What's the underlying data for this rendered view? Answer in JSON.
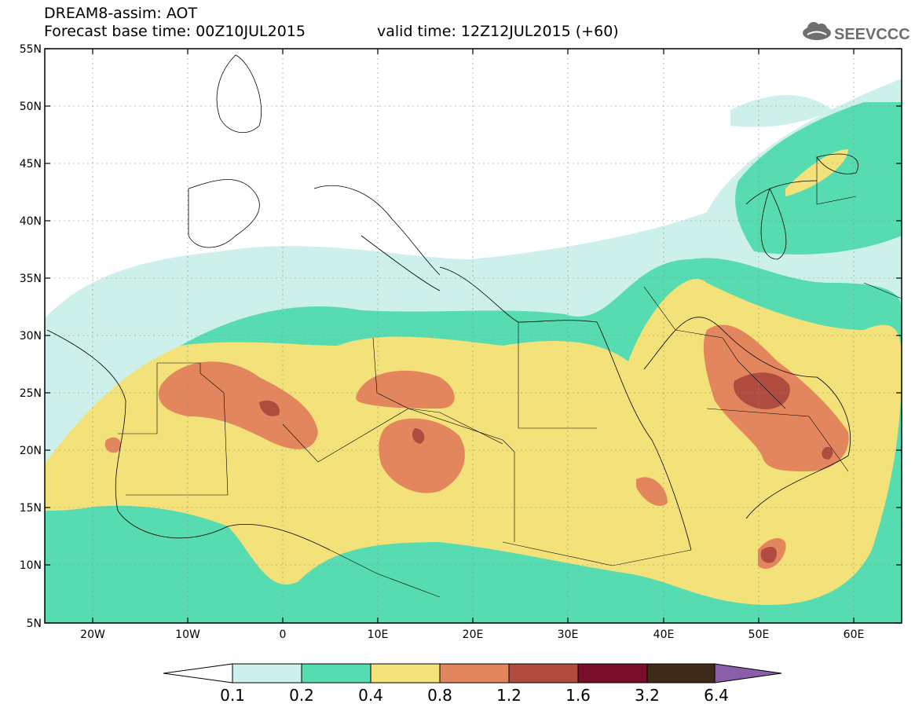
{
  "header": {
    "title": "DREAM8-assim: AOT",
    "base_time": "Forecast base time: 00Z10JUL2015",
    "valid_time": "valid time: 12Z12JUL2015 (+60)",
    "logo_text": "SEEVCCC"
  },
  "map": {
    "lat_labels": [
      "55N",
      "50N",
      "45N",
      "40N",
      "35N",
      "30N",
      "25N",
      "20N",
      "15N",
      "10N",
      "5N"
    ],
    "lon_labels": [
      "20W",
      "10W",
      "0",
      "10E",
      "20E",
      "30E",
      "40E",
      "50E",
      "60E"
    ],
    "lat_range": [
      5,
      55
    ],
    "lon_range": [
      -25,
      65
    ],
    "grid": true
  },
  "legend": {
    "values": [
      "0.1",
      "0.2",
      "0.4",
      "0.8",
      "1.2",
      "1.6",
      "3.2",
      "6.4"
    ],
    "colors": [
      "#cdf1ea",
      "#57dcb1",
      "#f3e27a",
      "#e3865e",
      "#b04c3f",
      "#7a0d2a",
      "#3e2a18",
      "#8a5ea8"
    ],
    "below_color": "#ffffff"
  }
}
